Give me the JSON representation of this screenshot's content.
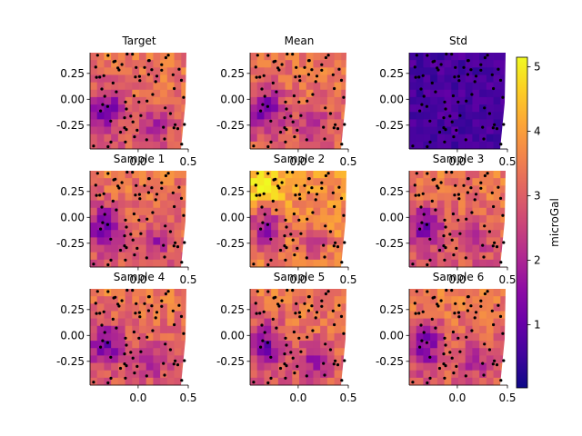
{
  "chart_data": {
    "type": "heatmap",
    "colormap": "plasma",
    "colorbar": {
      "label": "microGal",
      "range": [
        0.02,
        5.15
      ],
      "ticks": [
        1,
        2,
        3,
        4,
        5
      ]
    },
    "xlim": [
      -0.48,
      0.5
    ],
    "ylim": [
      -0.48,
      0.45
    ],
    "xticks": [
      0.0,
      0.5
    ],
    "yticks": [
      0.25,
      0.0,
      -0.25
    ],
    "panels": [
      {
        "title": "Target",
        "level": "mid"
      },
      {
        "title": "Mean",
        "level": "mid"
      },
      {
        "title": "Std",
        "level": "low"
      },
      {
        "title": "Sample 1",
        "level": "mid"
      },
      {
        "title": "Sample 2",
        "level": "high"
      },
      {
        "title": "Sample 3",
        "level": "mid"
      },
      {
        "title": "Sample 4",
        "level": "mid"
      },
      {
        "title": "Sample 5",
        "level": "mid"
      },
      {
        "title": "Sample 6",
        "level": "mid"
      }
    ]
  }
}
